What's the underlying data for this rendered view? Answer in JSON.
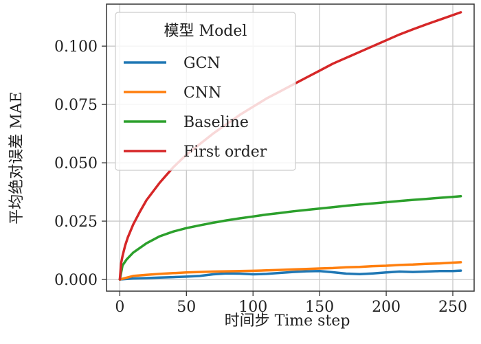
{
  "chart_data": {
    "type": "line",
    "title": "",
    "xlabel": "时间步 Time step",
    "ylabel": "平均绝对误差 MAE",
    "xlim": [
      -10,
      266
    ],
    "ylim": [
      -0.005,
      0.118
    ],
    "xticks": [
      0,
      50,
      100,
      150,
      200,
      250
    ],
    "xtick_labels": [
      "0",
      "50",
      "100",
      "150",
      "200",
      "250"
    ],
    "yticks": [
      0.0,
      0.025,
      0.05,
      0.075,
      0.1
    ],
    "ytick_labels": [
      "0.000",
      "0.025",
      "0.050",
      "0.075",
      "0.100"
    ],
    "grid": true,
    "legend": {
      "title": "模型 Model",
      "placement": "top-left"
    },
    "series": [
      {
        "name": "GCN",
        "color": "#1f77b4",
        "x": [
          0,
          10,
          20,
          30,
          40,
          50,
          60,
          70,
          80,
          90,
          100,
          110,
          120,
          130,
          140,
          150,
          160,
          170,
          180,
          190,
          200,
          210,
          220,
          230,
          240,
          250,
          256
        ],
        "y": [
          0.0,
          0.0004,
          0.0006,
          0.0008,
          0.001,
          0.0012,
          0.0015,
          0.0022,
          0.0026,
          0.0025,
          0.0022,
          0.0024,
          0.0028,
          0.0032,
          0.0035,
          0.0036,
          0.0031,
          0.0025,
          0.0023,
          0.0026,
          0.003,
          0.0034,
          0.0032,
          0.0034,
          0.0036,
          0.0036,
          0.0038
        ]
      },
      {
        "name": "CNN",
        "color": "#ff7f0e",
        "x": [
          0,
          10,
          20,
          30,
          40,
          50,
          60,
          70,
          80,
          90,
          100,
          110,
          120,
          130,
          140,
          150,
          160,
          170,
          180,
          190,
          200,
          210,
          220,
          230,
          240,
          250,
          256
        ],
        "y": [
          0.0,
          0.0015,
          0.002,
          0.0024,
          0.0027,
          0.003,
          0.0032,
          0.0034,
          0.0035,
          0.0036,
          0.0037,
          0.0039,
          0.0041,
          0.0043,
          0.0045,
          0.0047,
          0.0049,
          0.0052,
          0.0054,
          0.0057,
          0.0059,
          0.0062,
          0.0064,
          0.0067,
          0.0069,
          0.0072,
          0.0074
        ]
      },
      {
        "name": "Baseline",
        "color": "#2ca02c",
        "x": [
          0,
          2,
          5,
          10,
          20,
          30,
          40,
          50,
          60,
          70,
          80,
          90,
          100,
          110,
          120,
          130,
          140,
          150,
          160,
          170,
          180,
          190,
          200,
          210,
          220,
          230,
          240,
          250,
          256
        ],
        "y": [
          0.0,
          0.006,
          0.0085,
          0.0115,
          0.0155,
          0.0185,
          0.0205,
          0.022,
          0.0232,
          0.0243,
          0.0253,
          0.0262,
          0.027,
          0.0278,
          0.0285,
          0.0292,
          0.0298,
          0.0304,
          0.031,
          0.0316,
          0.0321,
          0.0326,
          0.0331,
          0.0336,
          0.0341,
          0.0345,
          0.035,
          0.0354,
          0.0357
        ]
      },
      {
        "name": "First order",
        "color": "#d62728",
        "x": [
          0,
          1,
          2,
          4,
          6,
          10,
          15,
          20,
          30,
          40,
          50,
          60,
          70,
          80,
          90,
          100,
          110,
          120,
          130,
          140,
          150,
          160,
          170,
          180,
          190,
          200,
          210,
          220,
          230,
          240,
          250,
          256
        ],
        "y": [
          0.0,
          0.007,
          0.01,
          0.0145,
          0.018,
          0.0235,
          0.029,
          0.034,
          0.0415,
          0.048,
          0.0535,
          0.058,
          0.0625,
          0.0665,
          0.0705,
          0.074,
          0.0775,
          0.0805,
          0.0835,
          0.0865,
          0.0895,
          0.0925,
          0.095,
          0.0975,
          0.1,
          0.1025,
          0.105,
          0.1072,
          0.1093,
          0.1113,
          0.1133,
          0.1145
        ]
      }
    ]
  }
}
